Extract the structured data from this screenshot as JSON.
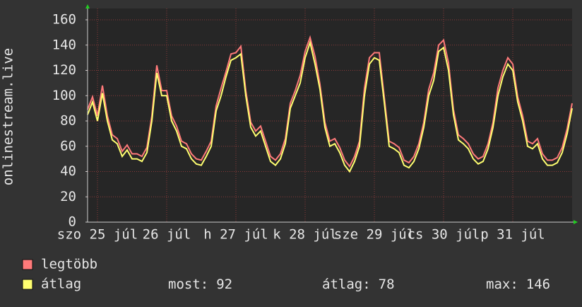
{
  "chart_data": {
    "type": "line",
    "y_label": "onlinestream.live",
    "categories": [
      null,
      null,
      "szo 25 júl",
      null,
      null,
      null,
      null,
      null,
      null,
      null,
      null,
      null,
      null,
      null,
      null,
      null,
      "26 júl",
      null,
      null,
      null,
      null,
      null,
      null,
      null,
      null,
      null,
      null,
      null,
      null,
      null,
      "h 27 júl",
      null,
      null,
      null,
      null,
      null,
      null,
      null,
      null,
      null,
      null,
      null,
      null,
      null,
      "k 28 júl",
      null,
      null,
      null,
      null,
      null,
      null,
      null,
      null,
      null,
      null,
      null,
      null,
      null,
      "sze 29 júl",
      null,
      null,
      null,
      null,
      null,
      null,
      null,
      null,
      null,
      null,
      null,
      null,
      null,
      "cs 30 júl",
      null,
      null,
      null,
      null,
      null,
      null,
      null,
      null,
      null,
      null,
      null,
      null,
      null,
      "p 31 júl",
      null,
      null,
      null,
      null,
      null,
      null,
      null,
      null,
      null,
      null,
      null,
      null
    ],
    "series": [
      {
        "name": "legtöbb",
        "color": "#ff7a7a",
        "values": [
          89,
          99,
          84,
          108,
          84,
          69,
          66,
          56,
          61,
          54,
          54,
          52,
          59,
          84,
          124,
          104,
          104,
          84,
          76,
          64,
          62,
          54,
          50,
          49,
          56,
          64,
          92,
          106,
          119,
          133,
          134,
          139,
          104,
          79,
          72,
          76,
          64,
          52,
          49,
          54,
          66,
          94,
          104,
          116,
          135,
          146,
          131,
          109,
          79,
          64,
          66,
          59,
          49,
          44,
          52,
          64,
          106,
          130,
          134,
          134,
          99,
          64,
          62,
          59,
          49,
          47,
          52,
          62,
          79,
          105,
          118,
          140,
          144,
          126,
          89,
          69,
          66,
          62,
          54,
          50,
          52,
          62,
          79,
          106,
          120,
          130,
          125,
          99,
          84,
          64,
          62,
          66,
          54,
          49,
          49,
          51,
          59,
          74,
          94
        ]
      },
      {
        "name": "átlag",
        "color": "#ffff70",
        "values": [
          85,
          95,
          80,
          102,
          80,
          65,
          62,
          52,
          57,
          50,
          50,
          48,
          55,
          80,
          118,
          100,
          100,
          80,
          72,
          60,
          58,
          50,
          46,
          45,
          52,
          60,
          88,
          100,
          115,
          128,
          130,
          133,
          100,
          75,
          68,
          72,
          60,
          48,
          45,
          50,
          62,
          90,
          100,
          110,
          130,
          142,
          125,
          105,
          75,
          60,
          62,
          55,
          45,
          40,
          48,
          60,
          100,
          125,
          130,
          128,
          95,
          60,
          58,
          55,
          45,
          43,
          48,
          58,
          75,
          100,
          112,
          135,
          138,
          120,
          85,
          65,
          62,
          58,
          50,
          46,
          48,
          58,
          75,
          100,
          115,
          125,
          120,
          95,
          80,
          60,
          58,
          62,
          50,
          45,
          45,
          47,
          55,
          70,
          90
        ]
      }
    ],
    "ylim": [
      0,
      160
    ],
    "yticks": [
      0,
      20,
      40,
      60,
      80,
      100,
      120,
      140,
      160
    ],
    "grid": true,
    "stats": [
      {
        "label": "most:",
        "value": 92
      },
      {
        "label": "átlag:",
        "value": 78
      },
      {
        "label": "max:",
        "value": 146
      }
    ]
  }
}
